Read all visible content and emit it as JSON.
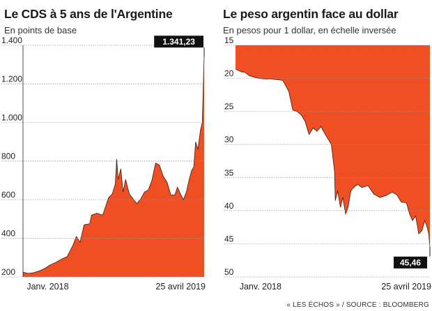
{
  "colors": {
    "fill": "#f04e23",
    "grid": "#9a9a9a",
    "callout_bg": "#111111",
    "callout_text": "#ffffff",
    "text": "#1a1a1a"
  },
  "source": "« LES ÉCHOS » / SOURCE : BLOOMBERG",
  "chart_data": [
    {
      "type": "area",
      "title": "Le CDS à 5 ans de l'Argentine",
      "subtitle": "En points de base",
      "ylim": [
        200,
        1400
      ],
      "yticks": [
        200,
        400,
        600,
        800,
        1000,
        1200,
        1400
      ],
      "ytick_labels": [
        "200",
        "400",
        "600",
        "800",
        "1.000",
        "1.200",
        "1.400"
      ],
      "xlim": [
        "2017-12-22",
        "2019-04-25"
      ],
      "xtick_labels": [
        {
          "date": "2018-01-01",
          "label": "Janv. 2018"
        },
        {
          "date": "2019-04-25",
          "label": "25 avril 2019"
        }
      ],
      "callout": {
        "value": 1341.23,
        "label": "1.341,23"
      },
      "series": [
        {
          "values": [
            [
              "2017-12-22",
              225
            ],
            [
              "2018-01-05",
              218
            ],
            [
              "2018-01-20",
              222
            ],
            [
              "2018-02-05",
              232
            ],
            [
              "2018-02-20",
              245
            ],
            [
              "2018-03-05",
              262
            ],
            [
              "2018-03-20",
              275
            ],
            [
              "2018-04-05",
              292
            ],
            [
              "2018-04-20",
              305
            ],
            [
              "2018-05-05",
              360
            ],
            [
              "2018-05-15",
              410
            ],
            [
              "2018-05-25",
              380
            ],
            [
              "2018-06-05",
              470
            ],
            [
              "2018-06-20",
              475
            ],
            [
              "2018-06-25",
              520
            ],
            [
              "2018-07-10",
              530
            ],
            [
              "2018-07-25",
              520
            ],
            [
              "2018-08-10",
              610
            ],
            [
              "2018-08-20",
              630
            ],
            [
              "2018-08-28",
              680
            ],
            [
              "2018-09-01",
              810
            ],
            [
              "2018-09-05",
              705
            ],
            [
              "2018-09-12",
              760
            ],
            [
              "2018-09-18",
              640
            ],
            [
              "2018-09-25",
              705
            ],
            [
              "2018-10-05",
              630
            ],
            [
              "2018-10-15",
              605
            ],
            [
              "2018-10-25",
              580
            ],
            [
              "2018-11-05",
              605
            ],
            [
              "2018-11-15",
              640
            ],
            [
              "2018-11-25",
              650
            ],
            [
              "2018-12-05",
              700
            ],
            [
              "2018-12-15",
              790
            ],
            [
              "2018-12-25",
              780
            ],
            [
              "2019-01-05",
              720
            ],
            [
              "2019-01-15",
              690
            ],
            [
              "2019-01-25",
              625
            ],
            [
              "2019-02-05",
              625
            ],
            [
              "2019-02-12",
              665
            ],
            [
              "2019-02-20",
              630
            ],
            [
              "2019-02-28",
              600
            ],
            [
              "2019-03-08",
              640
            ],
            [
              "2019-03-15",
              700
            ],
            [
              "2019-03-22",
              750
            ],
            [
              "2019-03-28",
              770
            ],
            [
              "2019-04-02",
              900
            ],
            [
              "2019-04-08",
              860
            ],
            [
              "2019-04-15",
              960
            ],
            [
              "2019-04-20",
              1000
            ],
            [
              "2019-04-25",
              1341.23
            ]
          ]
        }
      ]
    },
    {
      "type": "area",
      "title": "Le peso argentin face au dollar",
      "subtitle": "En pesos pour 1 dollar, en échelle inversée",
      "ylim": [
        15,
        50
      ],
      "y_inverted": true,
      "yticks": [
        15,
        20,
        25,
        30,
        35,
        40,
        45,
        50
      ],
      "ytick_labels": [
        "15",
        "20",
        "25",
        "30",
        "35",
        "40",
        "45",
        "50"
      ],
      "xlim": [
        "2017-12-22",
        "2019-04-25"
      ],
      "xtick_labels": [
        {
          "date": "2018-01-01",
          "label": "Janv. 2018"
        },
        {
          "date": "2019-04-25",
          "label": "25 avril 2019"
        }
      ],
      "callout": {
        "value": 45.46,
        "label": "45,46"
      },
      "series": [
        {
          "values": [
            [
              "2017-12-22",
              18.6
            ],
            [
              "2018-01-05",
              19.0
            ],
            [
              "2018-01-15",
              19.1
            ],
            [
              "2018-01-25",
              19.6
            ],
            [
              "2018-02-05",
              19.8
            ],
            [
              "2018-02-20",
              20.0
            ],
            [
              "2018-03-05",
              20.1
            ],
            [
              "2018-03-20",
              20.1
            ],
            [
              "2018-04-05",
              20.2
            ],
            [
              "2018-04-20",
              20.3
            ],
            [
              "2018-05-05",
              22.0
            ],
            [
              "2018-05-15",
              24.8
            ],
            [
              "2018-05-25",
              25.0
            ],
            [
              "2018-06-05",
              25.5
            ],
            [
              "2018-06-15",
              26.5
            ],
            [
              "2018-06-25",
              28.5
            ],
            [
              "2018-07-05",
              27.5
            ],
            [
              "2018-07-15",
              28.0
            ],
            [
              "2018-07-25",
              27.3
            ],
            [
              "2018-08-05",
              28.5
            ],
            [
              "2018-08-20",
              30.0
            ],
            [
              "2018-08-28",
              34.0
            ],
            [
              "2018-08-30",
              38.5
            ],
            [
              "2018-09-05",
              37.0
            ],
            [
              "2018-09-12",
              39.5
            ],
            [
              "2018-09-18",
              38.0
            ],
            [
              "2018-09-25",
              40.5
            ],
            [
              "2018-10-01",
              39.5
            ],
            [
              "2018-10-08",
              37.0
            ],
            [
              "2018-10-15",
              36.5
            ],
            [
              "2018-10-25",
              36.0
            ],
            [
              "2018-11-05",
              36.5
            ],
            [
              "2018-11-20",
              36.2
            ],
            [
              "2018-12-05",
              37.5
            ],
            [
              "2018-12-20",
              38.0
            ],
            [
              "2019-01-05",
              37.7
            ],
            [
              "2019-01-20",
              37.2
            ],
            [
              "2019-02-01",
              37.6
            ],
            [
              "2019-02-12",
              38.7
            ],
            [
              "2019-02-25",
              38.8
            ],
            [
              "2019-03-05",
              40.5
            ],
            [
              "2019-03-12",
              41.5
            ],
            [
              "2019-03-20",
              40.8
            ],
            [
              "2019-03-28",
              43.5
            ],
            [
              "2019-04-05",
              43.0
            ],
            [
              "2019-04-12",
              41.5
            ],
            [
              "2019-04-18",
              42.5
            ],
            [
              "2019-04-22",
              43.5
            ],
            [
              "2019-04-25",
              45.46
            ]
          ]
        }
      ]
    }
  ]
}
